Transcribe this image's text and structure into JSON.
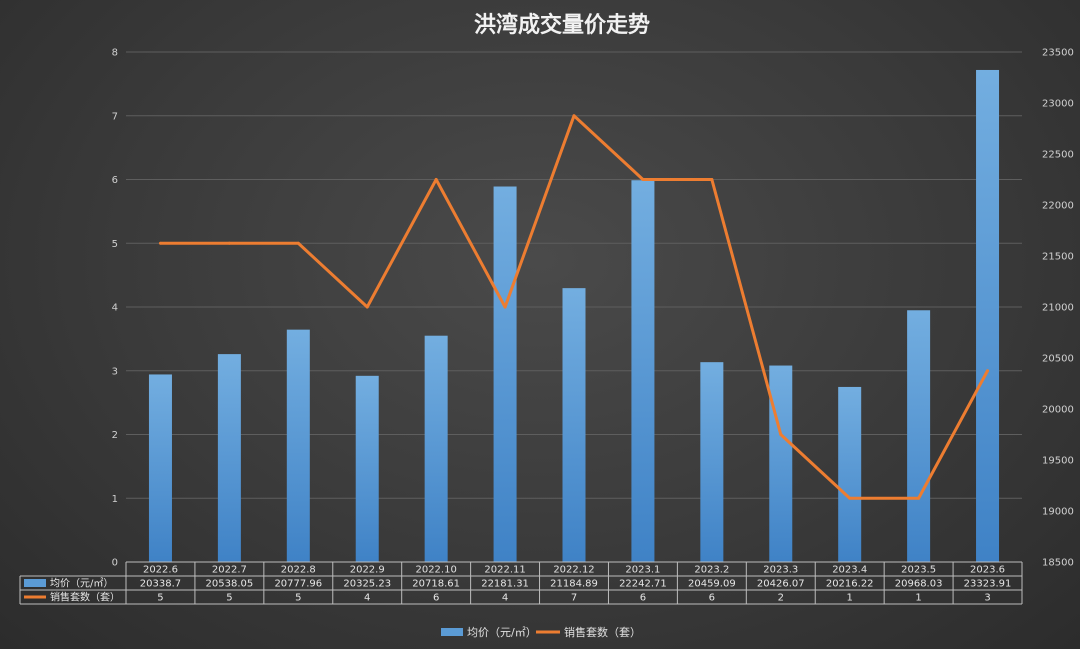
{
  "chart_data": {
    "type": "bar",
    "title": "洪湾成交量价走势",
    "categories": [
      "2022.6",
      "2022.7",
      "2022.8",
      "2022.9",
      "2022.10",
      "2022.11",
      "2022.12",
      "2023.1",
      "2023.2",
      "2023.3",
      "2023.4",
      "2023.5",
      "2023.6"
    ],
    "series": [
      {
        "name": "均价（元/㎡）",
        "type": "bar",
        "axis": "right",
        "color": "#5b9bd5",
        "values": [
          20338.7,
          20538.05,
          20777.96,
          20325.23,
          20718.61,
          22181.31,
          21184.89,
          22242.71,
          20459.09,
          20426.07,
          20216.22,
          20968.03,
          23323.91
        ],
        "labels": [
          "20338.7",
          "20538.05",
          "20777.96",
          "20325.23",
          "20718.61",
          "22181.31",
          "21184.89",
          "22242.71",
          "20459.09",
          "20426.07",
          "20216.22",
          "20968.03",
          "23323.91"
        ]
      },
      {
        "name": "销售套数（套）",
        "type": "line",
        "axis": "left",
        "color": "#ed7d31",
        "values": [
          5,
          5,
          5,
          4,
          6,
          4,
          7,
          6,
          6,
          2,
          1,
          1,
          3
        ],
        "labels": [
          "5",
          "5",
          "5",
          "4",
          "6",
          "4",
          "7",
          "6",
          "6",
          "2",
          "1",
          "1",
          "3"
        ]
      }
    ],
    "y_left": {
      "min": 0,
      "max": 8,
      "step": 1,
      "ticks": [
        "0",
        "1",
        "2",
        "3",
        "4",
        "5",
        "6",
        "7",
        "8"
      ]
    },
    "y_right": {
      "min": 18500,
      "max": 23500,
      "step": 500,
      "ticks": [
        "18500",
        "19000",
        "19500",
        "20000",
        "20500",
        "21000",
        "21500",
        "22000",
        "22500",
        "23000",
        "23500"
      ]
    },
    "grid": true,
    "legend": "bottom",
    "data_table": true
  }
}
